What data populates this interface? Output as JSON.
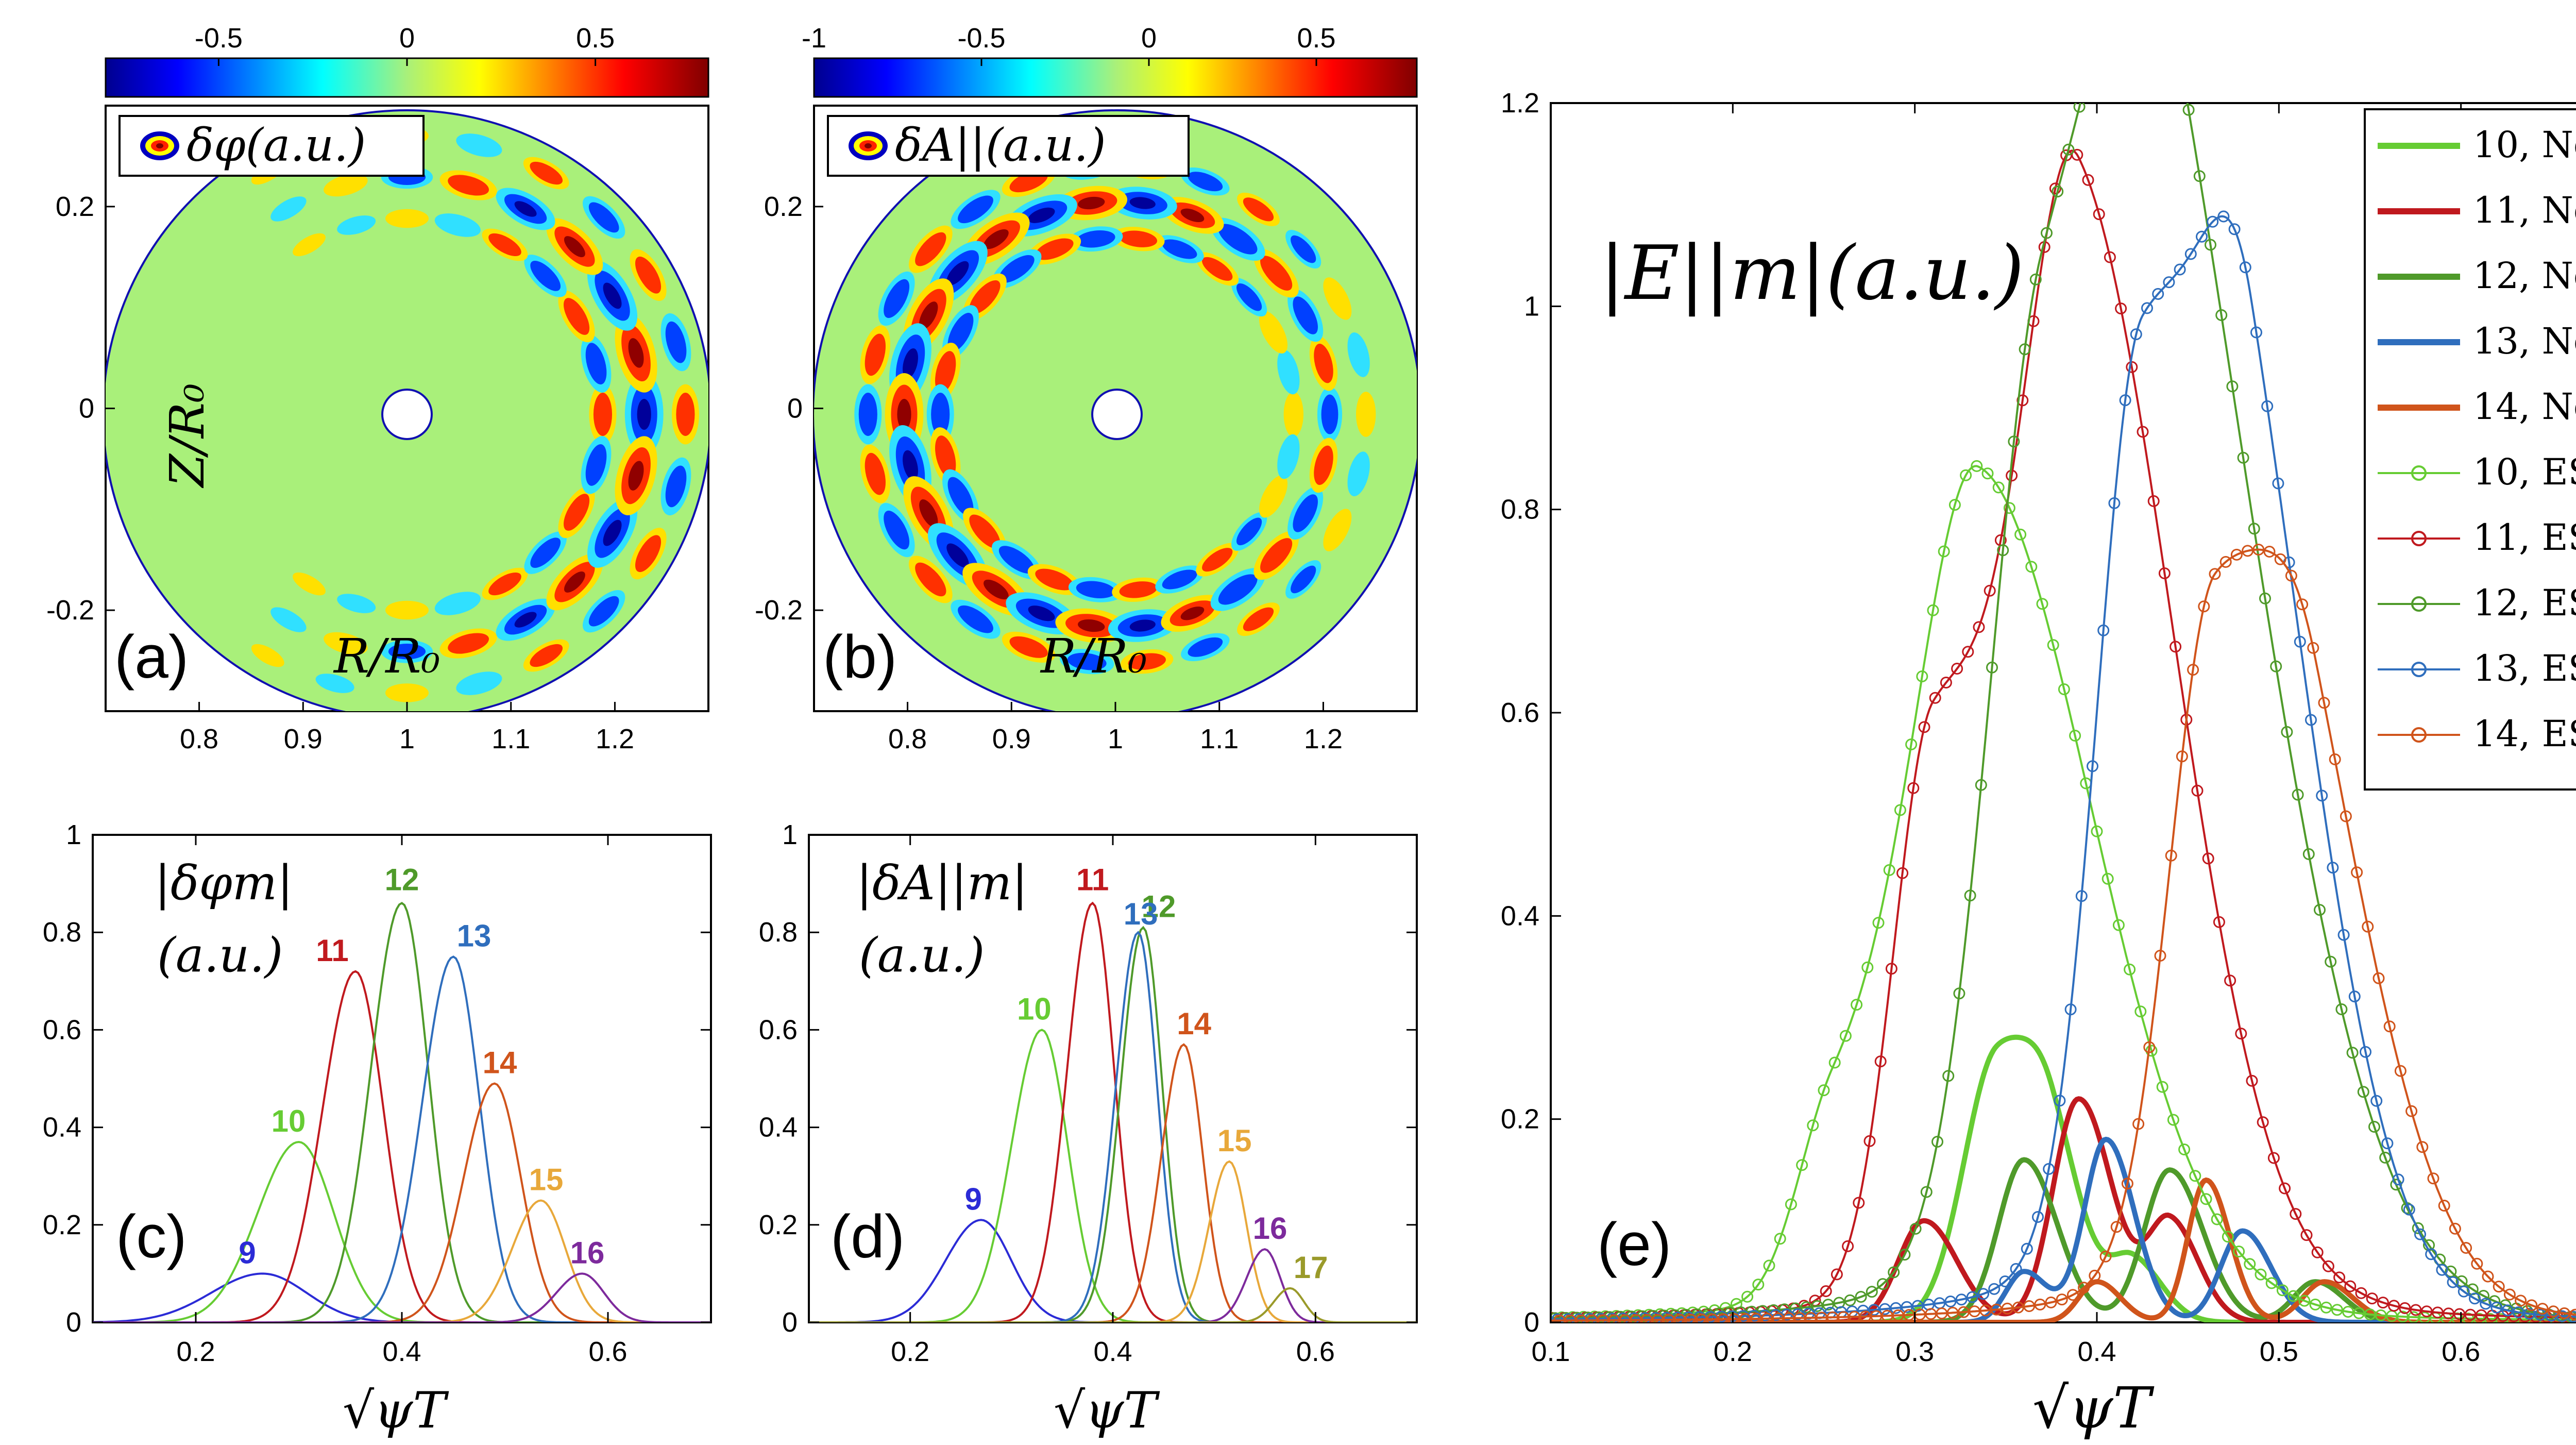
{
  "colors": {
    "m9": "#2b2bd6",
    "m10": "#66cc33",
    "m11": "#c0191e",
    "m12": "#4f9a2a",
    "m13": "#2f6ebd",
    "m14": "#d0541b",
    "m15": "#e8a83a",
    "m16": "#7d2a9c",
    "m17": "#9a9a2a",
    "disk_bg": "#a9f07a",
    "disk_edge": "#1010b0"
  },
  "chart_data": [
    {
      "id": "a",
      "type": "heatmap",
      "panel_label": "(a)",
      "legend": "δφ(a.u.)",
      "xlabel": "R/R₀",
      "ylabel": "Z/R₀",
      "xlim": [
        0.71,
        1.29
      ],
      "ylim": [
        -0.3,
        0.3
      ],
      "xticks": [
        "0.8",
        "0.9",
        "1",
        "1.1",
        "1.2"
      ],
      "yticks": [
        "0.2",
        "0",
        "-0.2"
      ],
      "colorbar": {
        "range": [
          -0.8,
          0.8
        ],
        "ticks": [
          "-0.5",
          "0",
          "0.5"
        ]
      },
      "mode": {
        "m_poloidal": 12,
        "peak_radius": 0.78,
        "radial_width": 0.16,
        "outboard_peak": true
      }
    },
    {
      "id": "b",
      "type": "heatmap",
      "panel_label": "(b)",
      "legend": "δA||(a.u.)",
      "xlabel": "R/R₀",
      "ylabel": "",
      "xlim": [
        0.71,
        1.29
      ],
      "ylim": [
        -0.3,
        0.3
      ],
      "xticks": [
        "0.8",
        "0.9",
        "1",
        "1.1",
        "1.2"
      ],
      "yticks": [
        "0.2",
        "0",
        "-0.2"
      ],
      "colorbar": {
        "range": [
          -1,
          0.8
        ],
        "ticks": [
          "-1",
          "-0.5",
          "0",
          "0.5"
        ]
      },
      "mode": {
        "m_poloidal": 13,
        "peak_radius": 0.7,
        "radial_width": 0.14,
        "outboard_peak": false
      }
    },
    {
      "id": "c",
      "type": "line",
      "panel_label": "(c)",
      "title_line1": "|δφm|",
      "title_line2": "(a.u.)",
      "xlabel": "√ψT",
      "xlim": [
        0.1,
        0.7
      ],
      "ylim": [
        0,
        1
      ],
      "xticks": [
        "0.2",
        "0.4",
        "0.6"
      ],
      "yticks": [
        "0",
        "0.2",
        "0.4",
        "0.6",
        "0.8",
        "1"
      ],
      "series": [
        {
          "name": "9",
          "peak_x": 0.265,
          "peak_y": 0.1,
          "width": 0.05
        },
        {
          "name": "10",
          "peak_x": 0.3,
          "peak_y": 0.37,
          "width": 0.04
        },
        {
          "name": "11",
          "peak_x": 0.355,
          "peak_y": 0.72,
          "width": 0.032
        },
        {
          "name": "12",
          "peak_x": 0.4,
          "peak_y": 0.86,
          "width": 0.03
        },
        {
          "name": "13",
          "peak_x": 0.45,
          "peak_y": 0.75,
          "width": 0.03
        },
        {
          "name": "14",
          "peak_x": 0.49,
          "peak_y": 0.49,
          "width": 0.03
        },
        {
          "name": "15",
          "peak_x": 0.535,
          "peak_y": 0.25,
          "width": 0.028
        },
        {
          "name": "16",
          "peak_x": 0.575,
          "peak_y": 0.1,
          "width": 0.025
        }
      ]
    },
    {
      "id": "d",
      "type": "line",
      "panel_label": "(d)",
      "title_line1": "|δA||m|",
      "title_line2": "(a.u.)",
      "xlabel": "√ψT",
      "xlim": [
        0.1,
        0.7
      ],
      "ylim": [
        0,
        1
      ],
      "xticks": [
        "0.2",
        "0.4",
        "0.6"
      ],
      "yticks": [
        "0",
        "0.2",
        "0.4",
        "0.6",
        "0.8",
        "1"
      ],
      "series": [
        {
          "name": "9",
          "peak_x": 0.27,
          "peak_y": 0.21,
          "width": 0.035
        },
        {
          "name": "10",
          "peak_x": 0.33,
          "peak_y": 0.6,
          "width": 0.03
        },
        {
          "name": "11",
          "peak_x": 0.38,
          "peak_y": 0.86,
          "width": 0.025
        },
        {
          "name": "12",
          "peak_x": 0.43,
          "peak_y": 0.81,
          "width": 0.022
        },
        {
          "name": "13",
          "peak_x": 0.425,
          "peak_y": 0.8,
          "width": 0.022
        },
        {
          "name": "14",
          "peak_x": 0.47,
          "peak_y": 0.57,
          "width": 0.022
        },
        {
          "name": "15",
          "peak_x": 0.515,
          "peak_y": 0.33,
          "width": 0.02
        },
        {
          "name": "16",
          "peak_x": 0.55,
          "peak_y": 0.15,
          "width": 0.018
        },
        {
          "name": "17",
          "peak_x": 0.575,
          "peak_y": 0.07,
          "width": 0.016
        }
      ]
    },
    {
      "id": "e",
      "type": "line",
      "panel_label": "(e)",
      "title": "|E||m|(a.u.)",
      "xlabel": "√ψT",
      "xlim": [
        0.1,
        0.7
      ],
      "ylim": [
        0,
        1.2
      ],
      "xticks": [
        "0.1",
        "0.2",
        "0.3",
        "0.4",
        "0.5",
        "0.6",
        "0.7"
      ],
      "yticks": [
        "0",
        "0.2",
        "0.4",
        "0.6",
        "0.8",
        "1",
        "1.2"
      ],
      "legend": [
        "10, Net",
        "11, Net",
        "12, Net",
        "13, Net",
        "14, Net",
        "10, ES",
        "11, ES",
        "12, ES",
        "13, ES",
        "14, ES"
      ],
      "series": [
        {
          "name": "10, Net",
          "m": 10,
          "kind": "Net",
          "peaks": [
            [
              0.345,
              0.26,
              0.018
            ],
            [
              0.375,
              0.12,
              0.014
            ],
            [
              0.42,
              0.06,
              0.012
            ]
          ]
        },
        {
          "name": "11, Net",
          "m": 11,
          "kind": "Net",
          "peaks": [
            [
              0.305,
              0.1,
              0.014
            ],
            [
              0.39,
              0.22,
              0.014
            ],
            [
              0.44,
              0.1,
              0.012
            ]
          ]
        },
        {
          "name": "12, Net",
          "m": 12,
          "kind": "Net",
          "peaks": [
            [
              0.36,
              0.16,
              0.014
            ],
            [
              0.44,
              0.15,
              0.014
            ],
            [
              0.52,
              0.04,
              0.012
            ]
          ]
        },
        {
          "name": "13, Net",
          "m": 13,
          "kind": "Net",
          "peaks": [
            [
              0.405,
              0.18,
              0.012
            ],
            [
              0.48,
              0.09,
              0.012
            ],
            [
              0.36,
              0.05,
              0.01
            ]
          ]
        },
        {
          "name": "14, Net",
          "m": 14,
          "kind": "Net",
          "peaks": [
            [
              0.46,
              0.14,
              0.01
            ],
            [
              0.525,
              0.04,
              0.012
            ],
            [
              0.4,
              0.04,
              0.01
            ]
          ]
        },
        {
          "name": "10, ES",
          "m": 10,
          "kind": "ES",
          "peaks": [
            [
              0.335,
              0.77,
              0.035
            ],
            [
              0.255,
              0.17,
              0.02
            ]
          ]
        },
        {
          "name": "11, ES",
          "m": 11,
          "kind": "ES",
          "peaks": [
            [
              0.39,
              1.0,
              0.03
            ],
            [
              0.31,
              0.55,
              0.022
            ]
          ]
        },
        {
          "name": "12, ES",
          "m": 12,
          "kind": "ES",
          "peaks": [
            [
              0.37,
              0.87,
              0.03
            ],
            [
              0.44,
              0.89,
              0.035
            ]
          ]
        },
        {
          "name": "13, ES",
          "m": 13,
          "kind": "ES",
          "peaks": [
            [
              0.425,
              0.89,
              0.025
            ],
            [
              0.485,
              0.6,
              0.025
            ]
          ]
        },
        {
          "name": "14, ES",
          "m": 14,
          "kind": "ES",
          "peaks": [
            [
              0.465,
              0.66,
              0.025
            ],
            [
              0.52,
              0.31,
              0.025
            ]
          ]
        }
      ]
    }
  ]
}
